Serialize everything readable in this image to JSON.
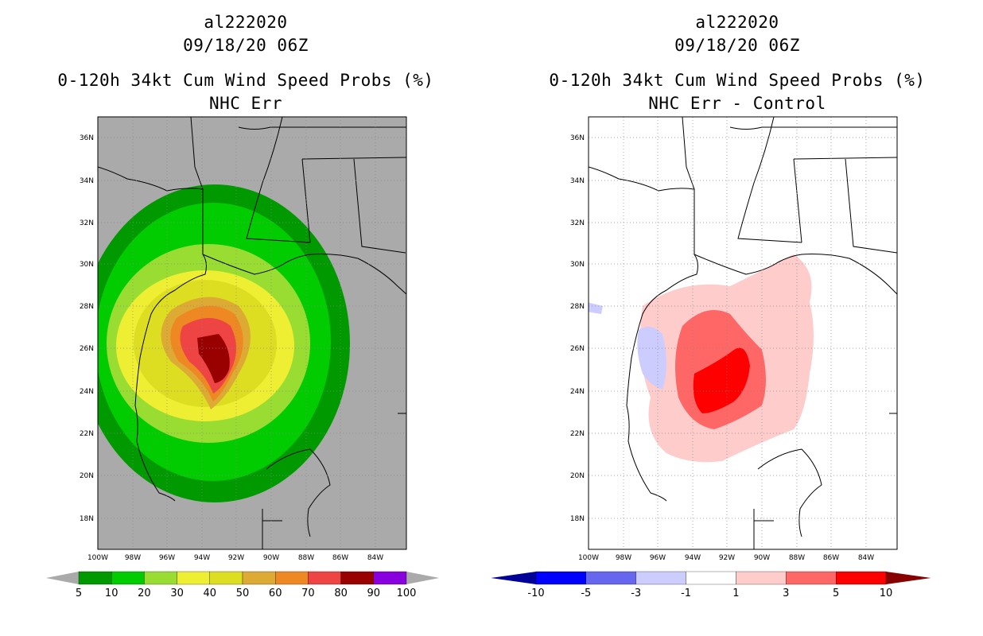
{
  "panels": [
    {
      "storm_id": "al222020",
      "datetime": "09/18/20 06Z",
      "product": "0-120h 34kt Cum Wind Speed Probs (%)",
      "subtitle": "NHC Err",
      "colorbar": {
        "colors": [
          "#009900",
          "#00cc00",
          "#99dd33",
          "#eeee33",
          "#dddd22",
          "#ddaa33",
          "#ee8822",
          "#ee4444",
          "#990000",
          "#8800dd"
        ],
        "end_colors": [
          "#aaaaaa",
          "#aaaaaa"
        ],
        "labels": [
          "5",
          "10",
          "20",
          "30",
          "40",
          "50",
          "60",
          "70",
          "80",
          "90",
          "100"
        ]
      }
    },
    {
      "storm_id": "al222020",
      "datetime": "09/18/20 06Z",
      "product": "0-120h 34kt Cum Wind Speed Probs (%)",
      "subtitle": "NHC Err - Control",
      "colorbar": {
        "colors": [
          "#0000ff",
          "#6666ee",
          "#ccccff",
          "#ffffff",
          "#ffcccc",
          "#ff6666",
          "#ff0000"
        ],
        "end_colors": [
          "#000099",
          "#880000"
        ],
        "labels": [
          "-10",
          "-5",
          "-3",
          "-1",
          "1",
          "3",
          "5",
          "10"
        ]
      }
    }
  ],
  "map": {
    "lat_labels": [
      "36N",
      "34N",
      "32N",
      "30N",
      "28N",
      "26N",
      "24N",
      "22N",
      "20N",
      "18N"
    ],
    "lon_labels": [
      "100W",
      "98W",
      "96W",
      "94W",
      "92W",
      "90W",
      "88W",
      "86W",
      "84W"
    ],
    "land_color": "#aaaaaa",
    "ocean_color": "#aaaaaa"
  }
}
